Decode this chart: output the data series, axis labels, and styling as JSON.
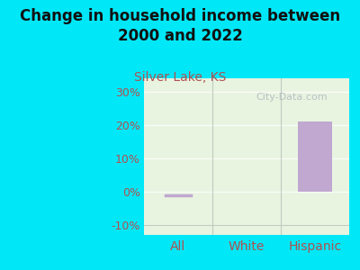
{
  "title": "Change in household income between\n2000 and 2022",
  "subtitle": "Silver Lake, KS",
  "categories": [
    "All",
    "White",
    "Hispanic"
  ],
  "values": [
    -1.0,
    0.0,
    21.0
  ],
  "bar_color": "#c0a8d0",
  "background_outer": "#00e8f8",
  "background_inner_top": "#e8f4e0",
  "background_inner_bottom": "#f5faf0",
  "title_color": "#111111",
  "subtitle_color": "#b05050",
  "tick_label_color": "#b05050",
  "grid_color": "#e0e8e0",
  "divider_color": "#c0ccc0",
  "watermark": "City-Data.com",
  "title_fontsize": 12,
  "subtitle_fontsize": 10,
  "tick_fontsize": 9,
  "xtick_fontsize": 10,
  "ylim": [
    -13,
    34
  ],
  "yticks": [
    -10,
    0,
    10,
    20,
    30
  ],
  "bar_width": 0.5,
  "all_line_val": -1.0,
  "hispanic_val": 21.0
}
